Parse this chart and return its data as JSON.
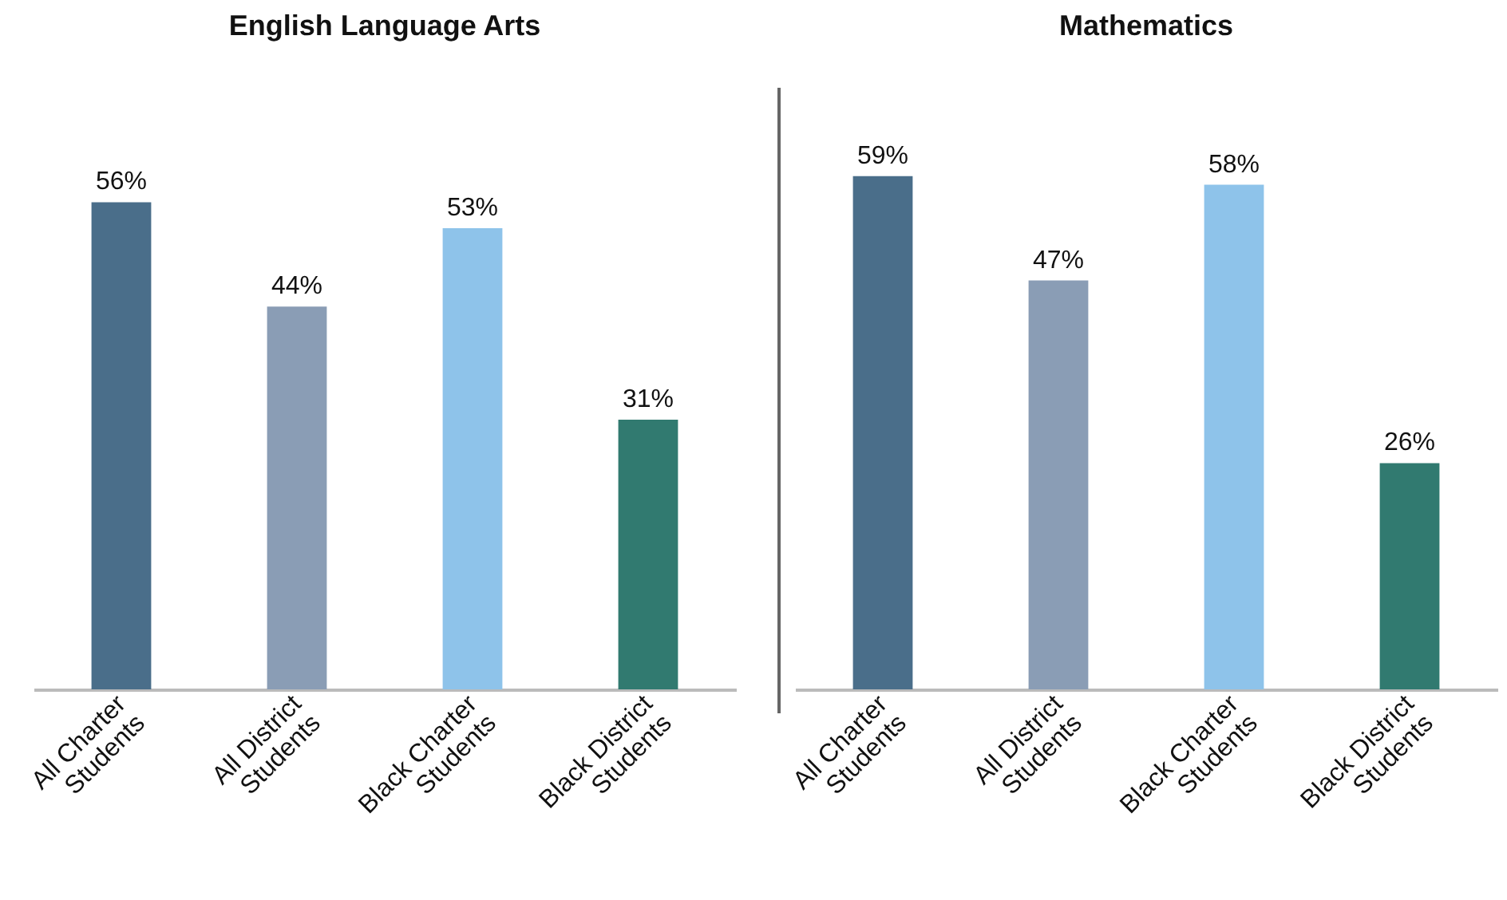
{
  "chart_data": [
    {
      "type": "bar",
      "title": "English Language Arts",
      "categories": [
        "All Charter Students",
        "All District Students",
        "Black Charter Students",
        "Black District Students"
      ],
      "values": [
        56,
        44,
        53,
        31
      ],
      "colors": [
        "#4a6e8a",
        "#8a9db5",
        "#8ec3ea",
        "#317a70"
      ],
      "value_labels": [
        "56%",
        "44%",
        "53%",
        "31%"
      ]
    },
    {
      "type": "bar",
      "title": "Mathematics",
      "categories": [
        "All Charter Students",
        "All District Students",
        "Black Charter Students",
        "Black District Students"
      ],
      "values": [
        59,
        47,
        58,
        26
      ],
      "colors": [
        "#4a6e8a",
        "#8a9db5",
        "#8ec3ea",
        "#317a70"
      ],
      "value_labels": [
        "59%",
        "47%",
        "58%",
        "26%"
      ]
    }
  ]
}
